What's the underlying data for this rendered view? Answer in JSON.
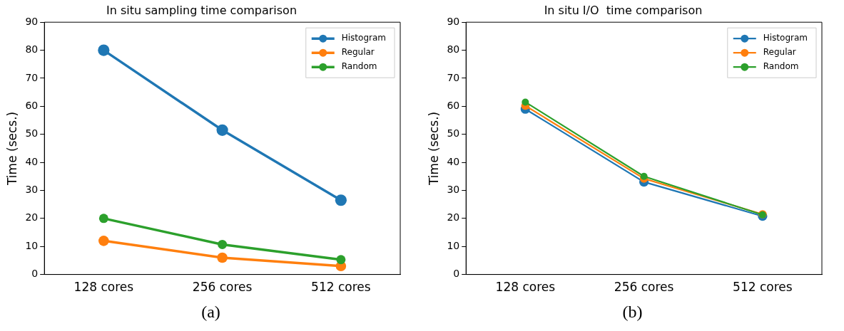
{
  "chart_data": [
    {
      "type": "line",
      "title": "In situ sampling time comparison",
      "ylabel": "Time (secs.)",
      "categories": [
        "128 cores",
        "256 cores",
        "512 cores"
      ],
      "series": [
        {
          "name": "Histogram",
          "color": "#1f77b4",
          "values": [
            80,
            51.5,
            26.5
          ]
        },
        {
          "name": "Regular",
          "color": "#ff7f0e",
          "values": [
            12,
            6,
            3
          ]
        },
        {
          "name": "Random",
          "color": "#2ca02c",
          "values": [
            20,
            10.7,
            5.3
          ]
        }
      ],
      "ylim": [
        0,
        90
      ],
      "yticks": [
        0,
        10,
        20,
        30,
        40,
        50,
        60,
        70,
        80,
        90
      ],
      "legend": "top right",
      "marker": "circle",
      "line_style": "solid",
      "annotations": [
        "(a)"
      ]
    },
    {
      "type": "line",
      "title": "In situ I/O  time comparison",
      "ylabel": "Time (secs.)",
      "categories": [
        "128 cores",
        "256 cores",
        "512 cores"
      ],
      "series": [
        {
          "name": "Histogram",
          "color": "#1f77b4",
          "values": [
            59,
            33,
            20.8
          ]
        },
        {
          "name": "Regular",
          "color": "#ff7f0e",
          "values": [
            60.2,
            34.2,
            21.5
          ]
        },
        {
          "name": "Random",
          "color": "#2ca02c",
          "values": [
            61.5,
            35,
            21.3
          ]
        }
      ],
      "ylim": [
        0,
        90
      ],
      "yticks": [
        0,
        10,
        20,
        30,
        40,
        50,
        60,
        70,
        80,
        90
      ],
      "legend": "top right",
      "marker": "circle",
      "line_style": "solid",
      "annotations": [
        "(b)"
      ]
    }
  ]
}
